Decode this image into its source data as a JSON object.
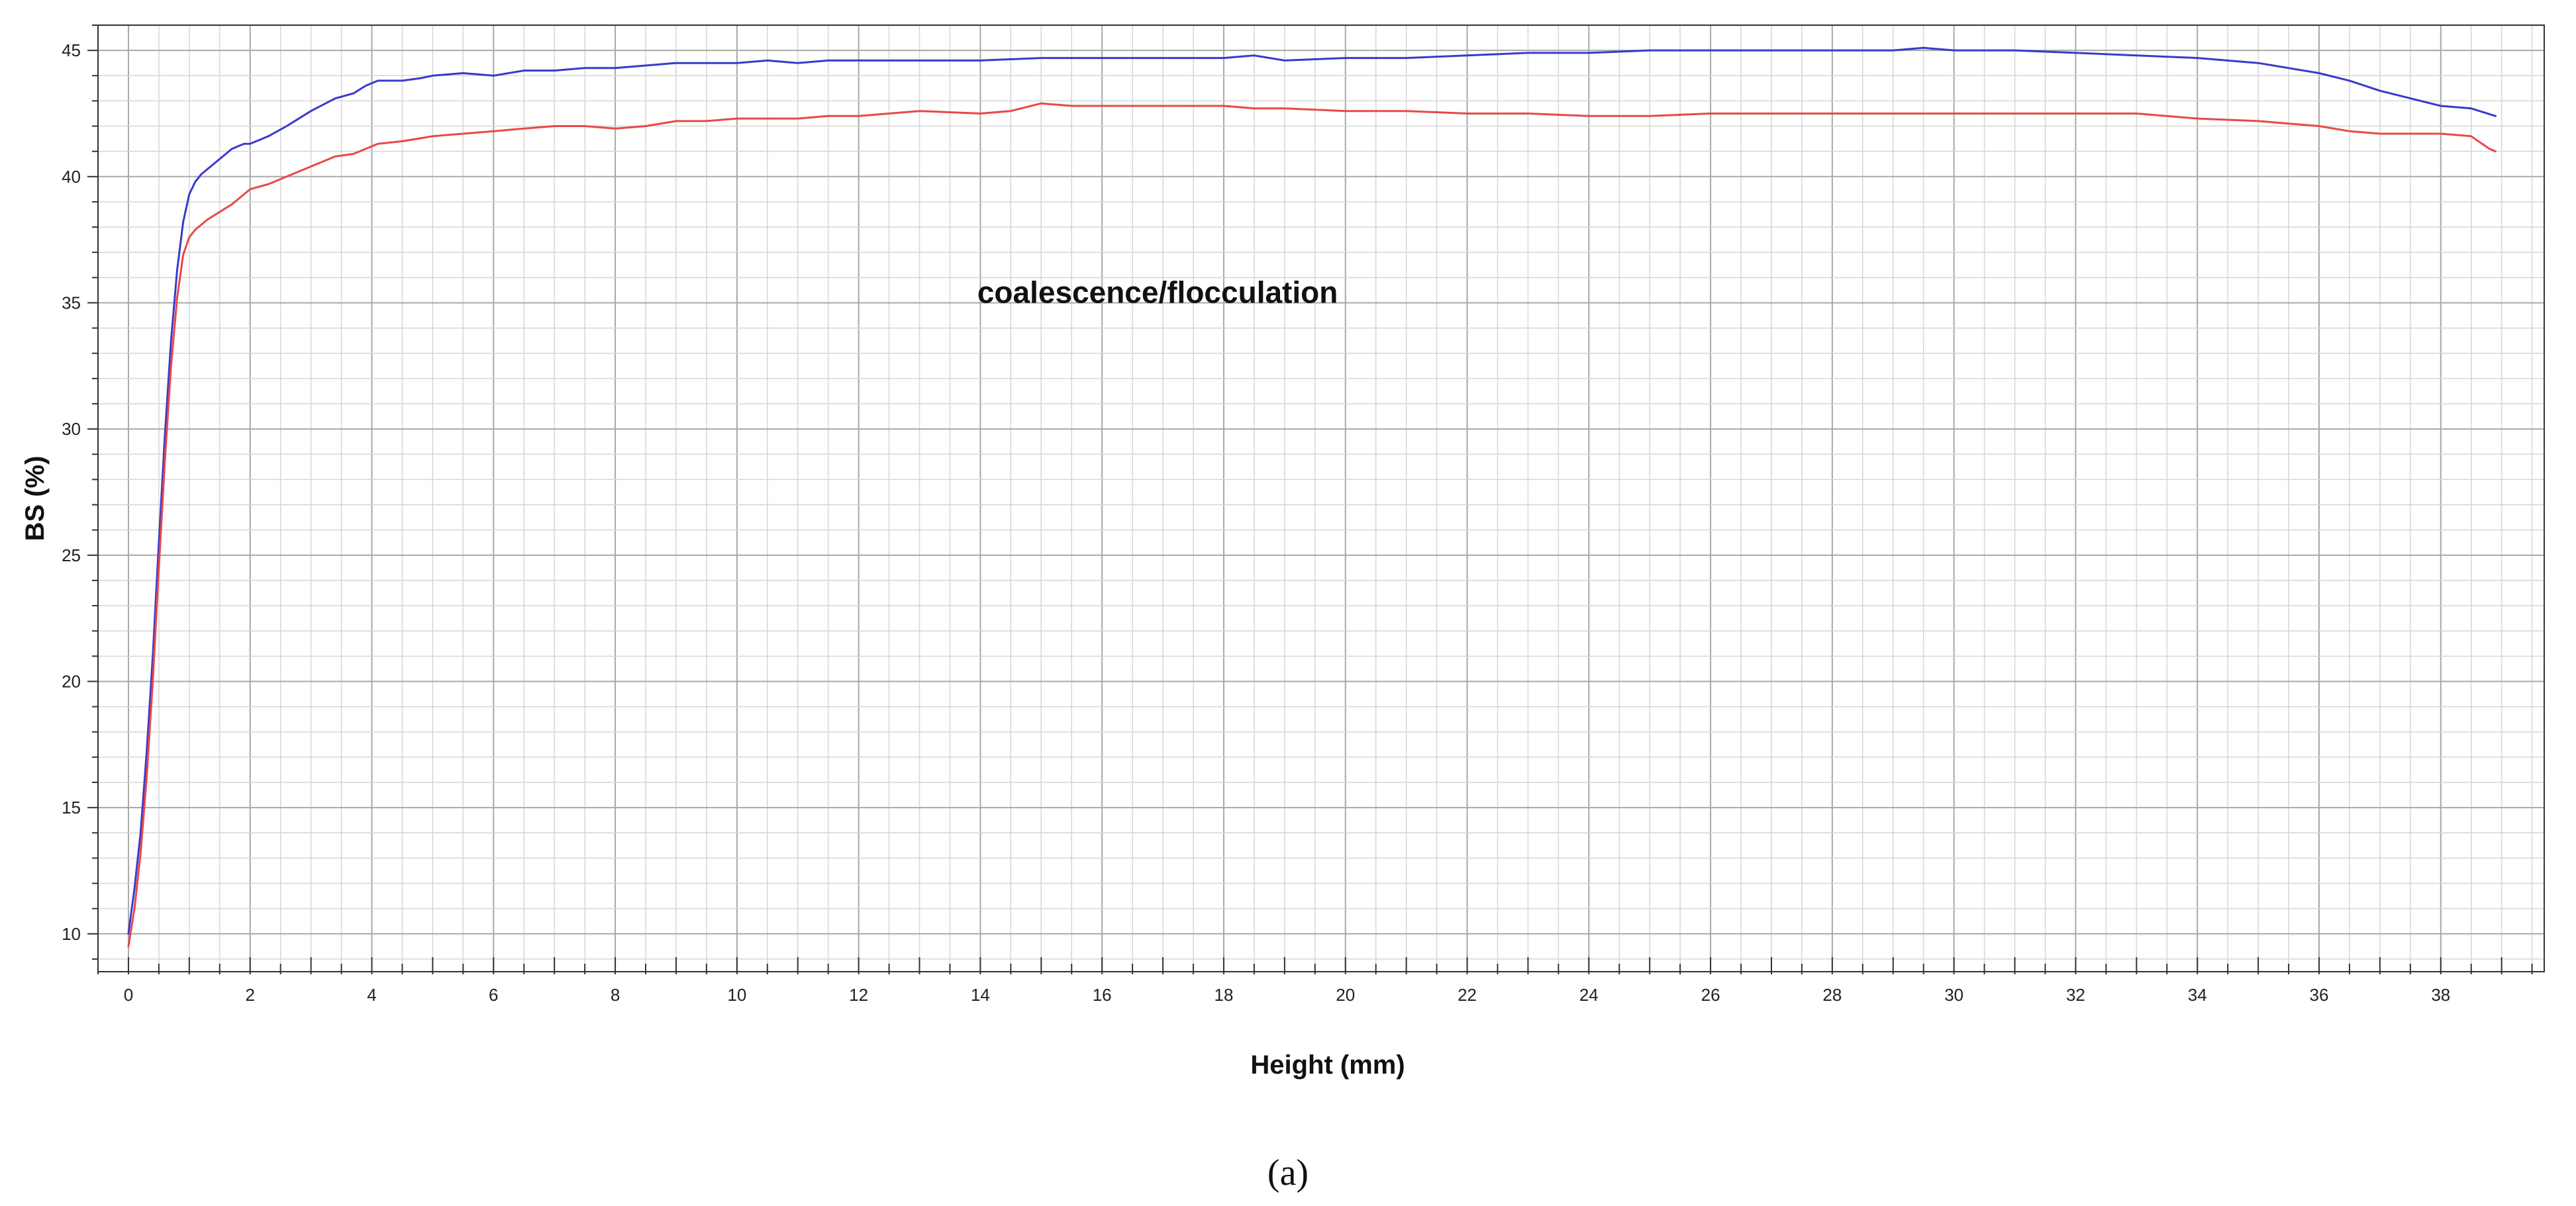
{
  "chart_data": {
    "type": "line",
    "title": "",
    "xlabel": "Height (mm)",
    "ylabel": "BS  (%)",
    "xlim": [
      -0.5,
      39.7
    ],
    "ylim": [
      8.5,
      46
    ],
    "x_ticks": [
      0,
      2,
      4,
      6,
      8,
      10,
      12,
      14,
      16,
      18,
      20,
      22,
      24,
      26,
      28,
      30,
      32,
      34,
      36,
      38
    ],
    "x_minor_step": 0.5,
    "y_ticks": [
      10,
      15,
      20,
      25,
      30,
      35,
      40,
      45
    ],
    "y_minor_step": 1,
    "grid": true,
    "legend": "none",
    "annotation": {
      "text": "coalescence/flocculation",
      "x": 13.95,
      "y": 35.0
    },
    "caption": "(a)",
    "series": [
      {
        "color": "#3a3acc",
        "x": [
          0,
          0.1,
          0.2,
          0.3,
          0.4,
          0.5,
          0.6,
          0.7,
          0.8,
          0.9,
          1.0,
          1.1,
          1.2,
          1.3,
          1.5,
          1.7,
          1.9,
          2.0,
          2.3,
          2.6,
          3.0,
          3.4,
          3.7,
          3.9,
          4.1,
          4.5,
          4.8,
          5.0,
          5.5,
          6.0,
          6.5,
          7.0,
          7.5,
          8.0,
          8.5,
          9.0,
          9.5,
          10.0,
          10.5,
          11.0,
          11.5,
          12.0,
          12.5,
          13.0,
          14.0,
          15.0,
          16.0,
          17.0,
          18.0,
          18.5,
          19.0,
          20.0,
          21.0,
          22.0,
          23.0,
          24.0,
          25.0,
          26.0,
          27.0,
          28.0,
          29.0,
          29.5,
          30.0,
          31.0,
          32.0,
          33.0,
          34.0,
          35.0,
          35.5,
          36.0,
          36.5,
          37.0,
          37.5,
          38.0,
          38.5,
          38.9
        ],
        "y": [
          10.0,
          11.8,
          14.0,
          17.2,
          21.0,
          25.5,
          29.8,
          33.5,
          36.3,
          38.2,
          39.3,
          39.8,
          40.1,
          40.3,
          40.7,
          41.1,
          41.3,
          41.3,
          41.6,
          42.0,
          42.6,
          43.1,
          43.3,
          43.6,
          43.8,
          43.8,
          43.9,
          44.0,
          44.1,
          44.0,
          44.2,
          44.2,
          44.3,
          44.3,
          44.4,
          44.5,
          44.5,
          44.5,
          44.6,
          44.5,
          44.6,
          44.6,
          44.6,
          44.6,
          44.6,
          44.7,
          44.7,
          44.7,
          44.7,
          44.8,
          44.6,
          44.7,
          44.7,
          44.8,
          44.9,
          44.9,
          45.0,
          45.0,
          45.0,
          45.0,
          45.0,
          45.1,
          45.0,
          45.0,
          44.9,
          44.8,
          44.7,
          44.5,
          44.3,
          44.1,
          43.8,
          43.4,
          43.1,
          42.8,
          42.7,
          42.4
        ]
      },
      {
        "color": "#e84848",
        "x": [
          0,
          0.1,
          0.2,
          0.3,
          0.4,
          0.5,
          0.6,
          0.7,
          0.8,
          0.9,
          1.0,
          1.1,
          1.2,
          1.3,
          1.5,
          1.7,
          1.9,
          2.0,
          2.3,
          2.6,
          3.0,
          3.4,
          3.7,
          3.9,
          4.1,
          4.5,
          5.0,
          5.5,
          6.0,
          6.5,
          7.0,
          7.5,
          8.0,
          8.5,
          9.0,
          9.5,
          10.0,
          10.5,
          11.0,
          11.5,
          12.0,
          12.5,
          13.0,
          14.0,
          14.5,
          15.0,
          15.5,
          16.0,
          17.0,
          18.0,
          18.5,
          19.0,
          20.0,
          21.0,
          22.0,
          22.5,
          23.0,
          24.0,
          25.0,
          26.0,
          27.0,
          28.0,
          29.0,
          30.0,
          31.0,
          32.0,
          33.0,
          34.0,
          35.0,
          36.0,
          36.5,
          37.0,
          37.5,
          38.0,
          38.5,
          38.8,
          38.9
        ],
        "y": [
          9.5,
          11.0,
          13.2,
          16.2,
          20.0,
          24.5,
          28.8,
          32.5,
          35.2,
          36.9,
          37.6,
          37.9,
          38.1,
          38.3,
          38.6,
          38.9,
          39.3,
          39.5,
          39.7,
          40.0,
          40.4,
          40.8,
          40.9,
          41.1,
          41.3,
          41.4,
          41.6,
          41.7,
          41.8,
          41.9,
          42.0,
          42.0,
          41.9,
          42.0,
          42.2,
          42.2,
          42.3,
          42.3,
          42.3,
          42.4,
          42.4,
          42.5,
          42.6,
          42.5,
          42.6,
          42.9,
          42.8,
          42.8,
          42.8,
          42.8,
          42.7,
          42.7,
          42.6,
          42.6,
          42.5,
          42.5,
          42.5,
          42.4,
          42.4,
          42.5,
          42.5,
          42.5,
          42.5,
          42.5,
          42.5,
          42.5,
          42.5,
          42.3,
          42.2,
          42.0,
          41.8,
          41.7,
          41.7,
          41.7,
          41.6,
          41.1,
          41.0
        ]
      }
    ]
  }
}
